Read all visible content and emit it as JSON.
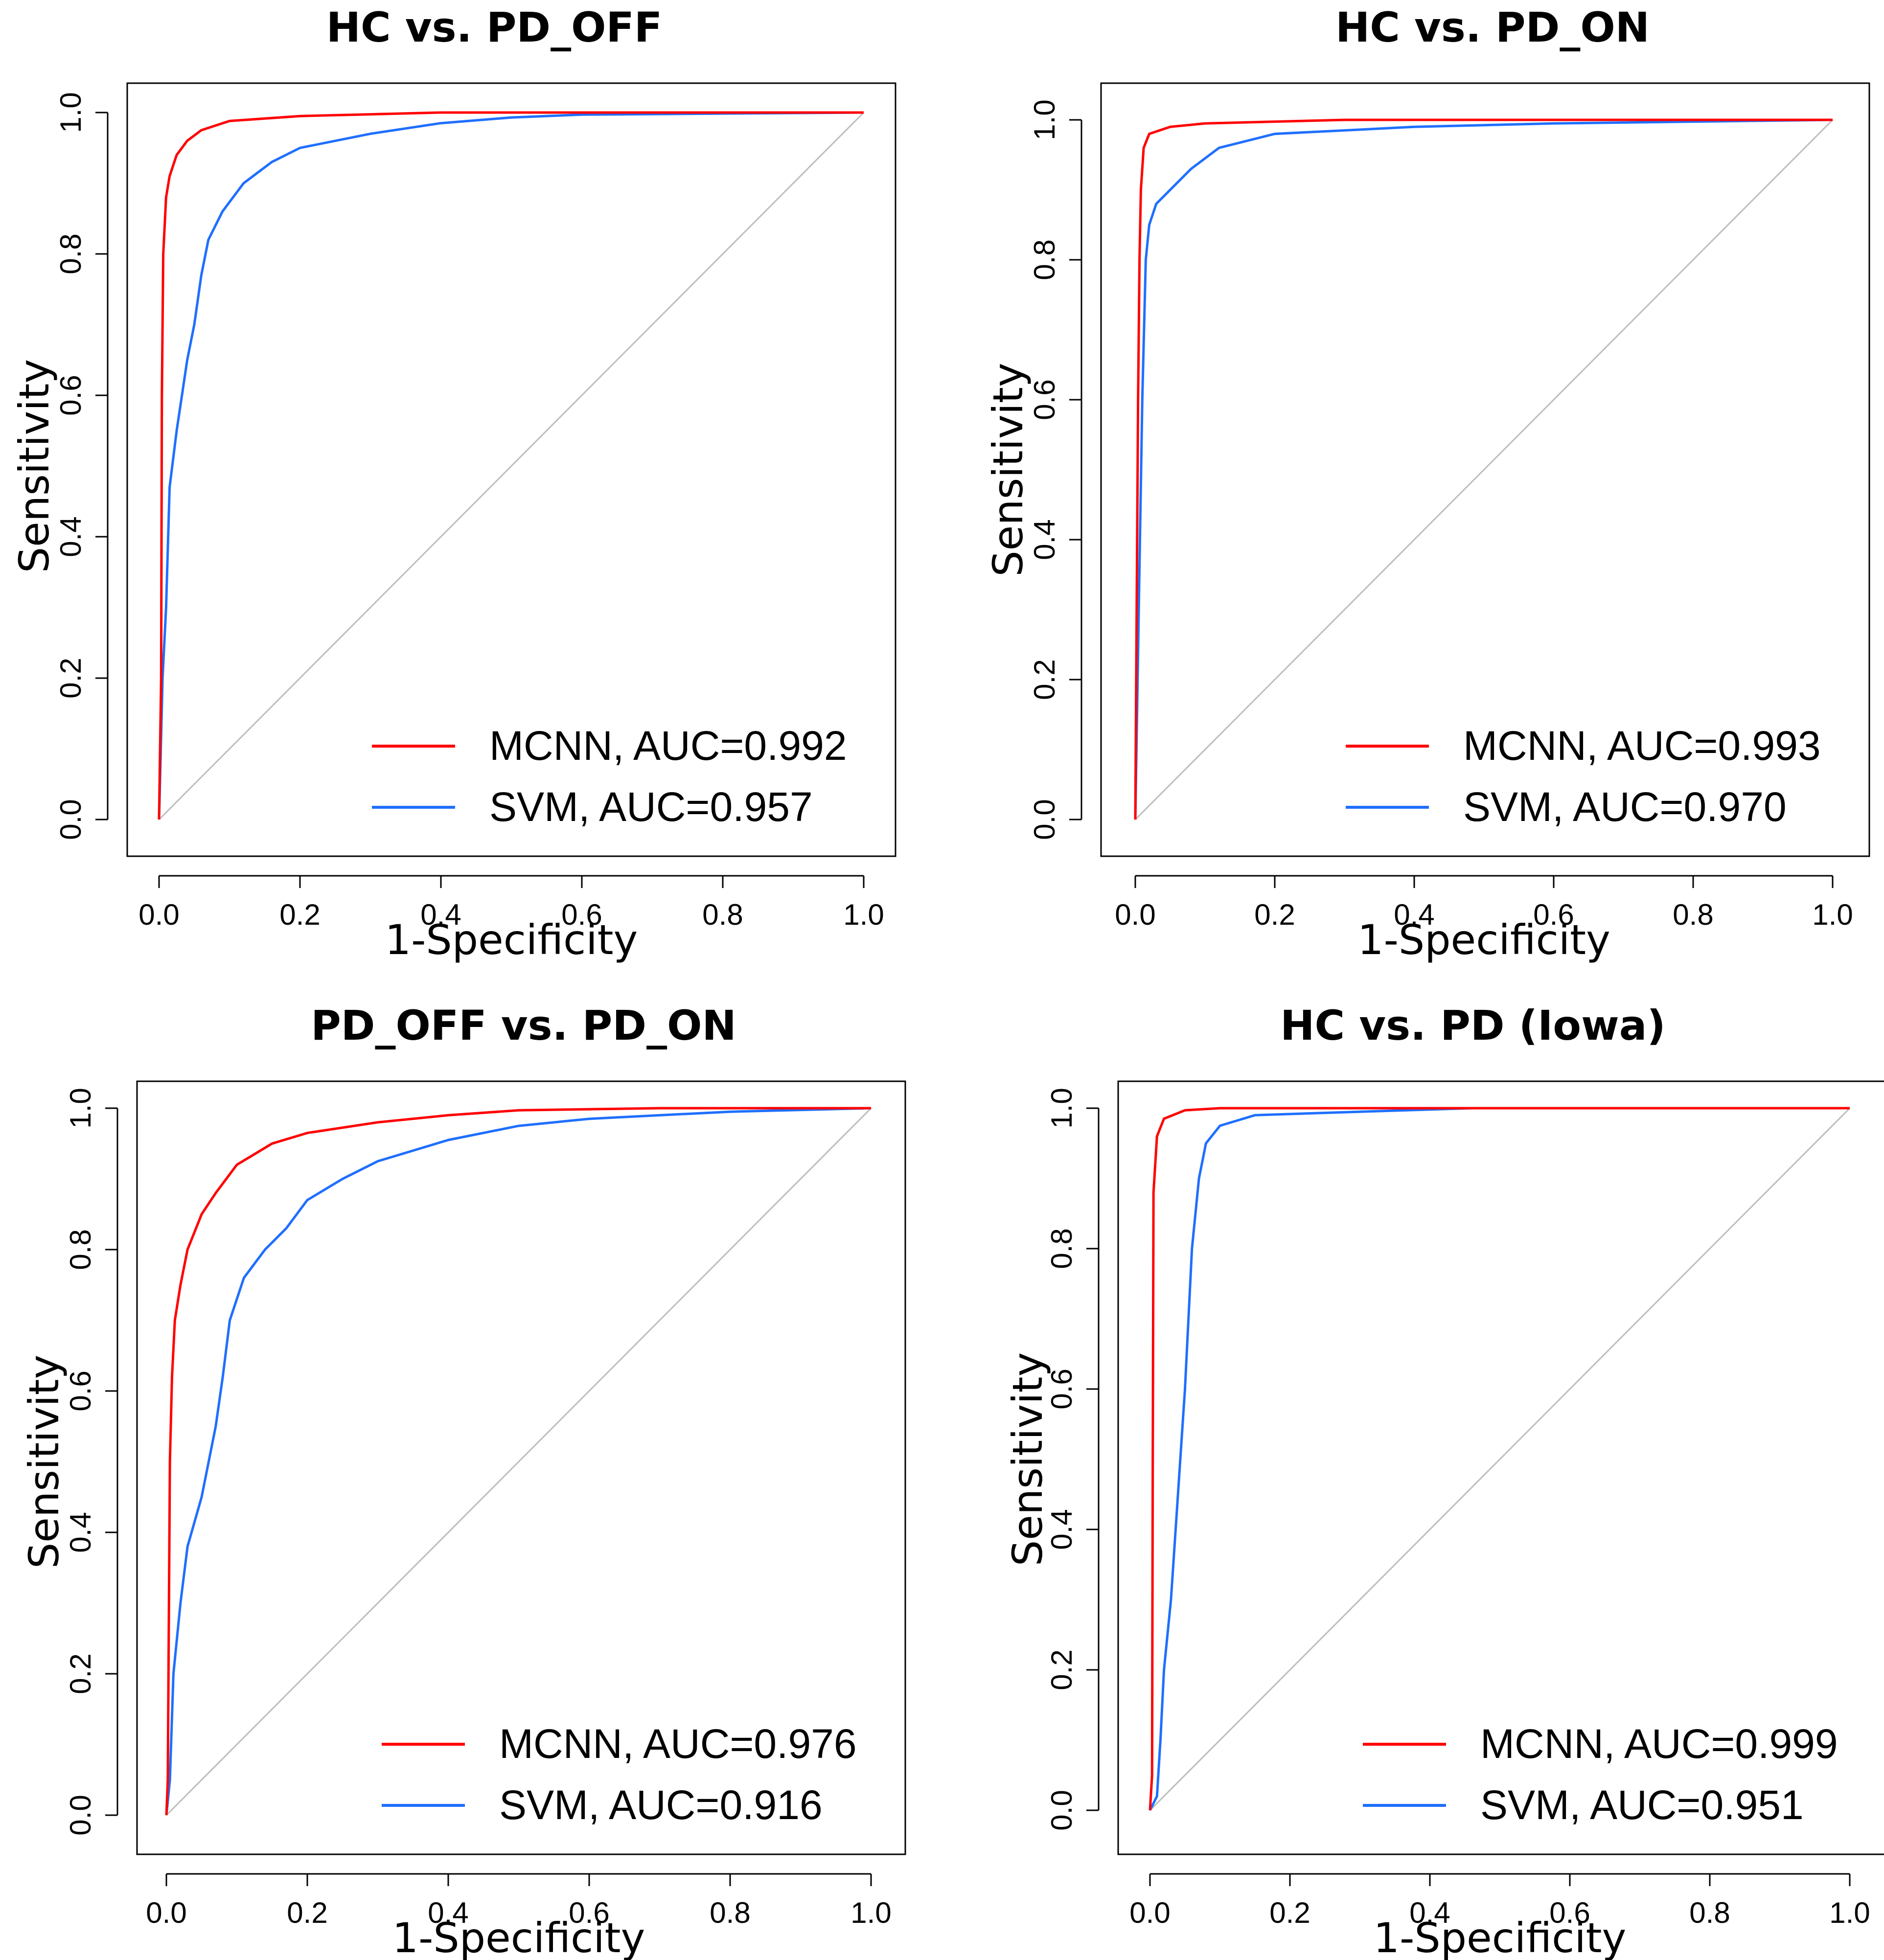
{
  "chart_data": [
    {
      "type": "line",
      "title": "HC vs. PD_OFF",
      "xlabel": "1-Specificity",
      "ylabel": "Sensitivity",
      "xlim": [
        0,
        1
      ],
      "ylim": [
        0,
        1
      ],
      "ticks": [
        "0.0",
        "0.2",
        "0.4",
        "0.6",
        "0.8",
        "1.0"
      ],
      "series": [
        {
          "name": "MCNN",
          "legend": "MCNN, AUC=0.992",
          "color": "#ff0000",
          "points": [
            [
              0,
              0
            ],
            [
              0.003,
              0.2
            ],
            [
              0.004,
              0.6
            ],
            [
              0.006,
              0.8
            ],
            [
              0.01,
              0.88
            ],
            [
              0.015,
              0.91
            ],
            [
              0.025,
              0.94
            ],
            [
              0.04,
              0.96
            ],
            [
              0.06,
              0.975
            ],
            [
              0.1,
              0.988
            ],
            [
              0.2,
              0.995
            ],
            [
              0.4,
              1.0
            ],
            [
              1,
              1
            ]
          ]
        },
        {
          "name": "SVM",
          "legend": "SVM, AUC=0.957",
          "color": "#1f6fff",
          "points": [
            [
              0,
              0
            ],
            [
              0.005,
              0.2
            ],
            [
              0.01,
              0.3
            ],
            [
              0.015,
              0.47
            ],
            [
              0.025,
              0.55
            ],
            [
              0.04,
              0.65
            ],
            [
              0.05,
              0.7
            ],
            [
              0.06,
              0.77
            ],
            [
              0.07,
              0.82
            ],
            [
              0.09,
              0.86
            ],
            [
              0.12,
              0.9
            ],
            [
              0.16,
              0.93
            ],
            [
              0.2,
              0.95
            ],
            [
              0.3,
              0.97
            ],
            [
              0.4,
              0.985
            ],
            [
              0.5,
              0.993
            ],
            [
              0.6,
              0.997
            ],
            [
              1,
              1
            ]
          ]
        }
      ]
    },
    {
      "type": "line",
      "title": "HC vs. PD_ON",
      "xlabel": "1-Specificity",
      "ylabel": "Sensitivity",
      "xlim": [
        0,
        1
      ],
      "ylim": [
        0,
        1
      ],
      "ticks": [
        "0.0",
        "0.2",
        "0.4",
        "0.6",
        "0.8",
        "1.0"
      ],
      "series": [
        {
          "name": "MCNN",
          "legend": "MCNN, AUC=0.993",
          "color": "#ff0000",
          "points": [
            [
              0,
              0
            ],
            [
              0.002,
              0.3
            ],
            [
              0.004,
              0.6
            ],
            [
              0.006,
              0.8
            ],
            [
              0.008,
              0.9
            ],
            [
              0.012,
              0.96
            ],
            [
              0.02,
              0.98
            ],
            [
              0.05,
              0.99
            ],
            [
              0.1,
              0.995
            ],
            [
              0.3,
              1.0
            ],
            [
              1,
              1
            ]
          ]
        },
        {
          "name": "SVM",
          "legend": "SVM, AUC=0.970",
          "color": "#1f6fff",
          "points": [
            [
              0,
              0
            ],
            [
              0.005,
              0.3
            ],
            [
              0.01,
              0.6
            ],
            [
              0.015,
              0.8
            ],
            [
              0.02,
              0.85
            ],
            [
              0.03,
              0.88
            ],
            [
              0.05,
              0.9
            ],
            [
              0.08,
              0.93
            ],
            [
              0.12,
              0.96
            ],
            [
              0.2,
              0.98
            ],
            [
              0.4,
              0.99
            ],
            [
              0.6,
              0.995
            ],
            [
              1,
              1
            ]
          ]
        }
      ]
    },
    {
      "type": "line",
      "title": "PD_OFF vs. PD_ON",
      "xlabel": "1-Specificity",
      "ylabel": "Sensitivity",
      "xlim": [
        0,
        1
      ],
      "ylim": [
        0,
        1
      ],
      "ticks": [
        "0.0",
        "0.2",
        "0.4",
        "0.6",
        "0.8",
        "1.0"
      ],
      "series": [
        {
          "name": "MCNN",
          "legend": "MCNN, AUC=0.976",
          "color": "#ff0000",
          "points": [
            [
              0,
              0
            ],
            [
              0.002,
              0.05
            ],
            [
              0.003,
              0.2
            ],
            [
              0.005,
              0.5
            ],
            [
              0.008,
              0.62
            ],
            [
              0.012,
              0.7
            ],
            [
              0.02,
              0.75
            ],
            [
              0.03,
              0.8
            ],
            [
              0.05,
              0.85
            ],
            [
              0.07,
              0.88
            ],
            [
              0.1,
              0.92
            ],
            [
              0.15,
              0.95
            ],
            [
              0.2,
              0.965
            ],
            [
              0.3,
              0.98
            ],
            [
              0.4,
              0.99
            ],
            [
              0.5,
              0.997
            ],
            [
              0.7,
              1.0
            ],
            [
              1,
              1
            ]
          ]
        },
        {
          "name": "SVM",
          "legend": "SVM, AUC=0.916",
          "color": "#1f6fff",
          "points": [
            [
              0,
              0
            ],
            [
              0.005,
              0.05
            ],
            [
              0.01,
              0.2
            ],
            [
              0.02,
              0.3
            ],
            [
              0.03,
              0.38
            ],
            [
              0.05,
              0.45
            ],
            [
              0.07,
              0.55
            ],
            [
              0.08,
              0.62
            ],
            [
              0.09,
              0.7
            ],
            [
              0.11,
              0.76
            ],
            [
              0.14,
              0.8
            ],
            [
              0.17,
              0.83
            ],
            [
              0.2,
              0.87
            ],
            [
              0.25,
              0.9
            ],
            [
              0.3,
              0.925
            ],
            [
              0.4,
              0.955
            ],
            [
              0.5,
              0.975
            ],
            [
              0.6,
              0.985
            ],
            [
              0.7,
              0.99
            ],
            [
              0.8,
              0.995
            ],
            [
              1,
              1
            ]
          ]
        }
      ]
    },
    {
      "type": "line",
      "title": "HC vs. PD (Iowa)",
      "xlabel": "1-Specificity",
      "ylabel": "Sensitivity",
      "xlim": [
        0,
        1
      ],
      "ylim": [
        0,
        1
      ],
      "ticks": [
        "0.0",
        "0.2",
        "0.4",
        "0.6",
        "0.8",
        "1.0"
      ],
      "series": [
        {
          "name": "MCNN",
          "legend": "MCNN, AUC=0.999",
          "color": "#ff0000",
          "points": [
            [
              0,
              0
            ],
            [
              0.003,
              0.05
            ],
            [
              0.004,
              0.5
            ],
            [
              0.005,
              0.88
            ],
            [
              0.01,
              0.96
            ],
            [
              0.02,
              0.985
            ],
            [
              0.05,
              0.997
            ],
            [
              0.1,
              1.0
            ],
            [
              1,
              1
            ]
          ]
        },
        {
          "name": "SVM",
          "legend": "SVM, AUC=0.951",
          "color": "#1f6fff",
          "points": [
            [
              0,
              0
            ],
            [
              0.01,
              0.02
            ],
            [
              0.015,
              0.1
            ],
            [
              0.02,
              0.2
            ],
            [
              0.03,
              0.3
            ],
            [
              0.04,
              0.45
            ],
            [
              0.05,
              0.6
            ],
            [
              0.06,
              0.8
            ],
            [
              0.07,
              0.9
            ],
            [
              0.08,
              0.95
            ],
            [
              0.1,
              0.975
            ],
            [
              0.15,
              0.99
            ],
            [
              0.3,
              0.995
            ],
            [
              0.46,
              1.0
            ],
            [
              1,
              1
            ]
          ]
        }
      ]
    }
  ]
}
